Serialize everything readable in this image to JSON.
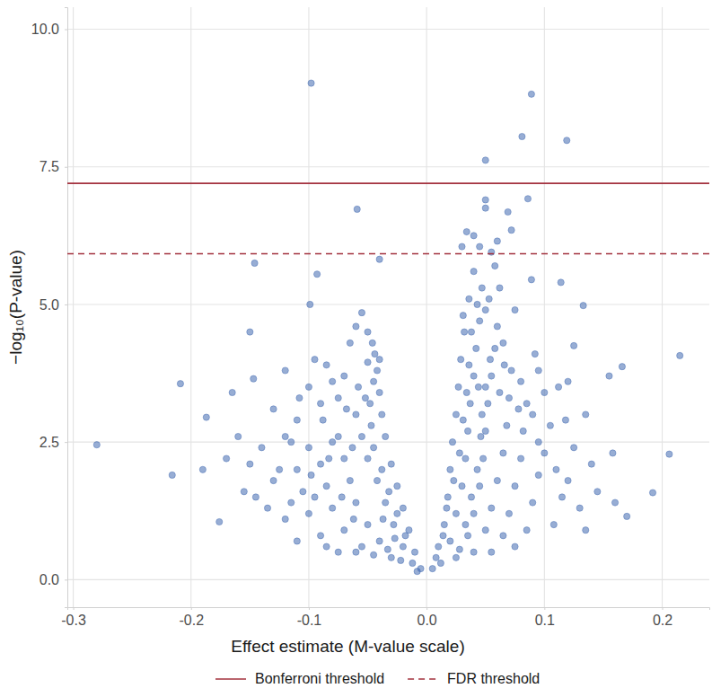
{
  "chart_data": {
    "type": "scatter",
    "x_label": "Effect estimate (M-value scale)",
    "y_label": "−log₁₀(P-value)",
    "color": "#4169b0",
    "marker": "circle",
    "grid": true,
    "legend": "bottom",
    "xlim": [
      -0.305,
      0.24
    ],
    "ylim": [
      -0.5,
      10.4
    ],
    "xticks": [
      -0.3,
      -0.2,
      -0.1,
      {
        "value": 0,
        "label": "0.0"
      },
      0.1,
      0.2
    ],
    "yticks": [
      {
        "value": 0,
        "label": "0.0"
      },
      2.5,
      {
        "value": 5,
        "label": "5.0"
      },
      7.5,
      {
        "value": 10,
        "label": "10.0"
      }
    ],
    "lines": [
      {
        "name": "Bonferroni threshold",
        "value": 7.2,
        "color": "#a3323e",
        "line_style": "solid"
      },
      {
        "name": "FDR threshold",
        "value": 5.92,
        "color": "#a3323e",
        "line_style": "dashed"
      }
    ],
    "x": [
      -0.098,
      0.089,
      0.081,
      0.119,
      0.05,
      0.05,
      0.086,
      0.05,
      0.069,
      -0.059,
      0.034,
      0.04,
      0.06,
      0.045,
      0.055,
      0.072,
      0.03,
      -0.146,
      -0.04,
      -0.093,
      -0.099,
      0.089,
      0.114,
      0.133,
      -0.28,
      -0.216,
      -0.209,
      -0.19,
      -0.187,
      -0.176,
      -0.165,
      -0.15,
      -0.147,
      0.215,
      0.206,
      0.192,
      0.17,
      0.166,
      0.16,
      0.155,
      0.158,
      0.135,
      0.125,
      0.12,
      -0.065,
      -0.06,
      -0.055,
      -0.05,
      -0.085,
      -0.12,
      -0.13,
      -0.11,
      -0.1,
      -0.095,
      -0.16,
      -0.17,
      -0.155,
      -0.14,
      -0.135,
      -0.125,
      -0.005,
      -0.01,
      -0.015,
      -0.02,
      -0.025,
      -0.03,
      -0.035,
      -0.038,
      -0.04,
      -0.042,
      -0.012,
      -0.02,
      -0.028,
      -0.035,
      -0.042,
      -0.05,
      -0.055,
      -0.06,
      -0.048,
      -0.045,
      -0.03,
      -0.04,
      -0.05,
      -0.06,
      -0.065,
      -0.07,
      -0.075,
      -0.068,
      -0.058,
      -0.05,
      -0.045,
      -0.055,
      -0.07,
      -0.08,
      -0.085,
      -0.09,
      -0.08,
      -0.088,
      -0.075,
      -0.07,
      -0.06,
      -0.075,
      -0.09,
      -0.1,
      -0.105,
      -0.11,
      -0.1,
      -0.115,
      -0.09,
      -0.08,
      -0.018,
      -0.025,
      -0.032,
      -0.038,
      -0.045,
      -0.047,
      -0.052,
      -0.044,
      -0.046,
      -0.04,
      -0.008,
      -0.022,
      -0.033,
      -0.037,
      -0.027,
      -0.062,
      -0.063,
      -0.083,
      -0.095,
      -0.12,
      -0.115,
      -0.13,
      -0.12,
      -0.108,
      -0.145,
      -0.15,
      -0.11,
      -0.085,
      -0.098,
      -0.072,
      0.005,
      0.01,
      0.015,
      0.018,
      0.02,
      0.022,
      0.025,
      0.027,
      0.029,
      0.032,
      0.012,
      0.02,
      0.025,
      0.03,
      0.033,
      0.035,
      0.037,
      0.04,
      0.042,
      0.045,
      0.025,
      0.035,
      0.04,
      0.045,
      0.048,
      0.05,
      0.052,
      0.055,
      0.058,
      0.06,
      0.04,
      0.05,
      0.055,
      0.06,
      0.065,
      0.068,
      0.07,
      0.072,
      0.065,
      0.05,
      0.055,
      0.065,
      0.07,
      0.075,
      0.08,
      0.082,
      0.085,
      0.08,
      0.09,
      0.095,
      0.075,
      0.085,
      0.09,
      0.095,
      0.1,
      0.105,
      0.1,
      0.11,
      0.115,
      0.108,
      0.12,
      0.125,
      0.13,
      0.118,
      0.14,
      0.145,
      0.135,
      0.112,
      0.095,
      0.092,
      0.038,
      0.043,
      0.047,
      0.04,
      0.036,
      0.031,
      0.053,
      0.062,
      0.058,
      0.075,
      0.008,
      0.014,
      0.017,
      0.023,
      0.028,
      0.031,
      0.034,
      0.036,
      0.044,
      0.047,
      0.028,
      0.033,
      0.038,
      0.043,
      0.046,
      0.05,
      0.054,
      0.062,
      0.066,
      0.078
    ],
    "values": [
      9.02,
      8.82,
      8.05,
      7.98,
      7.62,
      6.9,
      6.92,
      6.75,
      6.68,
      6.73,
      6.32,
      6.25,
      6.15,
      6.05,
      5.95,
      6.35,
      6.05,
      5.75,
      5.82,
      5.55,
      5.0,
      5.45,
      5.4,
      4.98,
      2.45,
      1.9,
      3.56,
      2.0,
      2.95,
      1.05,
      3.4,
      4.5,
      3.65,
      4.07,
      2.28,
      1.58,
      1.15,
      3.87,
      1.4,
      3.7,
      2.3,
      3.0,
      4.25,
      3.6,
      4.3,
      4.6,
      4.85,
      4.5,
      3.9,
      3.8,
      3.1,
      2.9,
      3.5,
      4.0,
      2.6,
      2.2,
      1.6,
      2.4,
      1.3,
      2.0,
      0.2,
      0.5,
      0.9,
      1.3,
      1.7,
      2.1,
      2.6,
      3.0,
      3.4,
      3.8,
      0.3,
      0.6,
      1.0,
      1.4,
      1.8,
      2.2,
      2.6,
      3.0,
      3.2,
      3.6,
      0.4,
      0.7,
      1.0,
      1.4,
      1.8,
      2.2,
      2.6,
      3.1,
      3.5,
      3.95,
      0.45,
      0.6,
      0.9,
      1.3,
      1.7,
      2.1,
      2.5,
      2.9,
      3.3,
      3.7,
      0.5,
      0.5,
      0.8,
      1.2,
      1.6,
      2.0,
      2.4,
      2.5,
      3.2,
      3.6,
      0.8,
      1.2,
      1.6,
      2.0,
      2.4,
      2.8,
      3.3,
      4.1,
      4.3,
      4.0,
      0.15,
      0.35,
      0.55,
      1.1,
      0.75,
      1.1,
      2.4,
      2.2,
      1.5,
      1.1,
      1.4,
      1.8,
      2.6,
      3.3,
      1.5,
      2.1,
      0.7,
      0.6,
      1.9,
      1.5,
      0.2,
      0.6,
      1.0,
      1.5,
      2.0,
      2.5,
      3.0,
      3.5,
      4.0,
      4.5,
      0.3,
      0.7,
      1.2,
      1.7,
      2.2,
      2.7,
      3.2,
      3.7,
      4.2,
      4.7,
      0.4,
      0.8,
      1.2,
      1.7,
      2.2,
      2.7,
      3.2,
      3.7,
      4.2,
      4.6,
      0.5,
      0.9,
      1.3,
      1.8,
      2.3,
      2.8,
      3.3,
      3.8,
      4.3,
      4.9,
      0.5,
      0.8,
      1.2,
      1.7,
      2.2,
      2.7,
      3.2,
      3.6,
      3.0,
      2.5,
      0.6,
      0.9,
      1.4,
      1.9,
      2.3,
      2.8,
      3.4,
      2.0,
      1.5,
      1.0,
      1.8,
      2.4,
      1.3,
      2.9,
      2.1,
      1.6,
      0.9,
      3.5,
      3.8,
      4.1,
      4.5,
      5.0,
      5.3,
      5.6,
      5.1,
      4.8,
      5.1,
      5.3,
      5.7,
      4.9,
      0.4,
      0.8,
      1.3,
      1.8,
      2.3,
      2.9,
      3.4,
      3.9,
      3.5,
      3.0,
      0.55,
      1.0,
      1.5,
      2.0,
      2.6,
      3.5,
      4.0,
      3.4,
      3.9,
      3.1
    ]
  }
}
